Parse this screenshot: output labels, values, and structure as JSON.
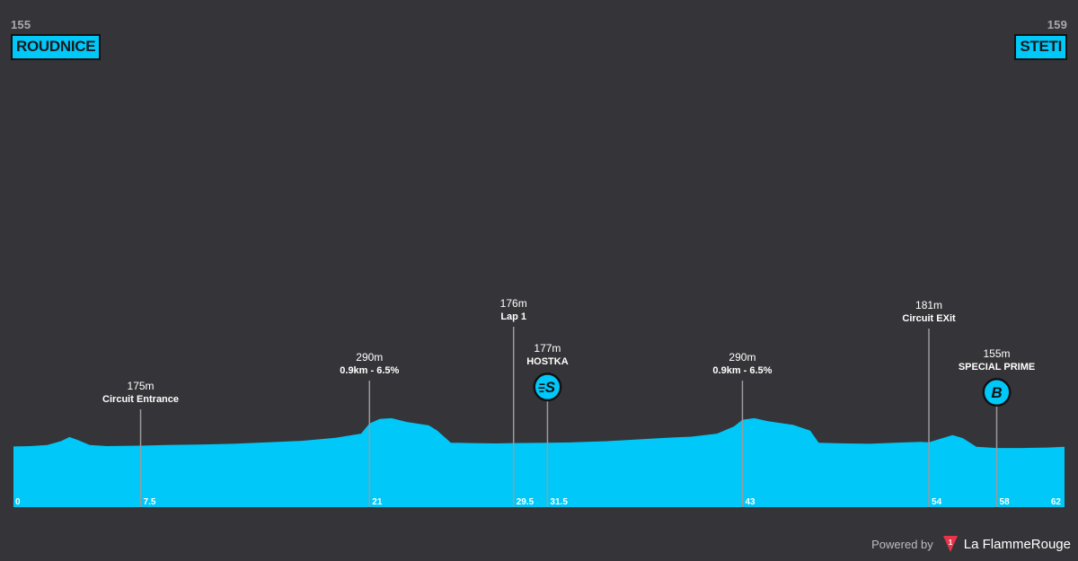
{
  "stage": {
    "start": {
      "name": "ROUDNICE",
      "altitude": "155"
    },
    "finish": {
      "name": "STETI",
      "altitude": "159"
    }
  },
  "chart_data": {
    "type": "area",
    "x_unit": "km",
    "y_unit": "m",
    "xlim": [
      0,
      62
    ],
    "ylim": [
      0,
      450
    ],
    "profile": [
      [
        0,
        161
      ],
      [
        1,
        162
      ],
      [
        2,
        165
      ],
      [
        2.8,
        175
      ],
      [
        3.3,
        186
      ],
      [
        3.8,
        178
      ],
      [
        4.5,
        165
      ],
      [
        5.5,
        162
      ],
      [
        7.5,
        163
      ],
      [
        9,
        165
      ],
      [
        11,
        166
      ],
      [
        13,
        168
      ],
      [
        15,
        172
      ],
      [
        17,
        176
      ],
      [
        19,
        184
      ],
      [
        20.5,
        195
      ],
      [
        21,
        222
      ],
      [
        21.6,
        234
      ],
      [
        22.3,
        236
      ],
      [
        23.2,
        226
      ],
      [
        24.5,
        217
      ],
      [
        25,
        203
      ],
      [
        25.8,
        171
      ],
      [
        27,
        170
      ],
      [
        28.5,
        169
      ],
      [
        29.5,
        170
      ],
      [
        31.5,
        171
      ],
      [
        33,
        172
      ],
      [
        35,
        175
      ],
      [
        37,
        180
      ],
      [
        38.5,
        184
      ],
      [
        40,
        187
      ],
      [
        41.5,
        195
      ],
      [
        42.5,
        214
      ],
      [
        43,
        232
      ],
      [
        43.7,
        236
      ],
      [
        44.5,
        228
      ],
      [
        46,
        218
      ],
      [
        47,
        203
      ],
      [
        47.5,
        171
      ],
      [
        49,
        169
      ],
      [
        50.5,
        168
      ],
      [
        52,
        171
      ],
      [
        53.5,
        173
      ],
      [
        54,
        172
      ],
      [
        54.8,
        183
      ],
      [
        55.4,
        191
      ],
      [
        56,
        183
      ],
      [
        56.8,
        160
      ],
      [
        58,
        157
      ],
      [
        59.5,
        157
      ],
      [
        61,
        158
      ],
      [
        62,
        160
      ]
    ],
    "markers": [
      {
        "km": 7.5,
        "altitude": "175m",
        "label": "Circuit Entrance",
        "tick": "7.5",
        "icon": ""
      },
      {
        "km": 21,
        "altitude": "290m",
        "label": "0.9km - 6.5%",
        "tick": "21",
        "icon": ""
      },
      {
        "km": 29.5,
        "altitude": "176m",
        "label": "Lap 1",
        "tick": "29.5",
        "icon": ""
      },
      {
        "km": 31.5,
        "altitude": "177m",
        "label": "HOSTKA",
        "tick": "31.5",
        "icon": "sprint-icon"
      },
      {
        "km": 43,
        "altitude": "290m",
        "label": "0.9km - 6.5%",
        "tick": "43",
        "icon": ""
      },
      {
        "km": 54,
        "altitude": "181m",
        "label": "Circuit EXit",
        "tick": "54",
        "icon": ""
      },
      {
        "km": 58,
        "altitude": "155m",
        "label": "SPECIAL PRIME",
        "tick": "58",
        "icon": "bonus-icon"
      }
    ],
    "tick_start": "0",
    "tick_end": "62"
  },
  "icons": {
    "sprint_letter": "S",
    "bonus_letter": "B"
  },
  "colors": {
    "background": "#353438",
    "profile": "#00c8f8",
    "line": "#9a9a9c",
    "text": "#ffffff"
  },
  "footer": {
    "powered": "Powered by",
    "brand": "La FlammeRouge",
    "logo_glyph": "1"
  }
}
